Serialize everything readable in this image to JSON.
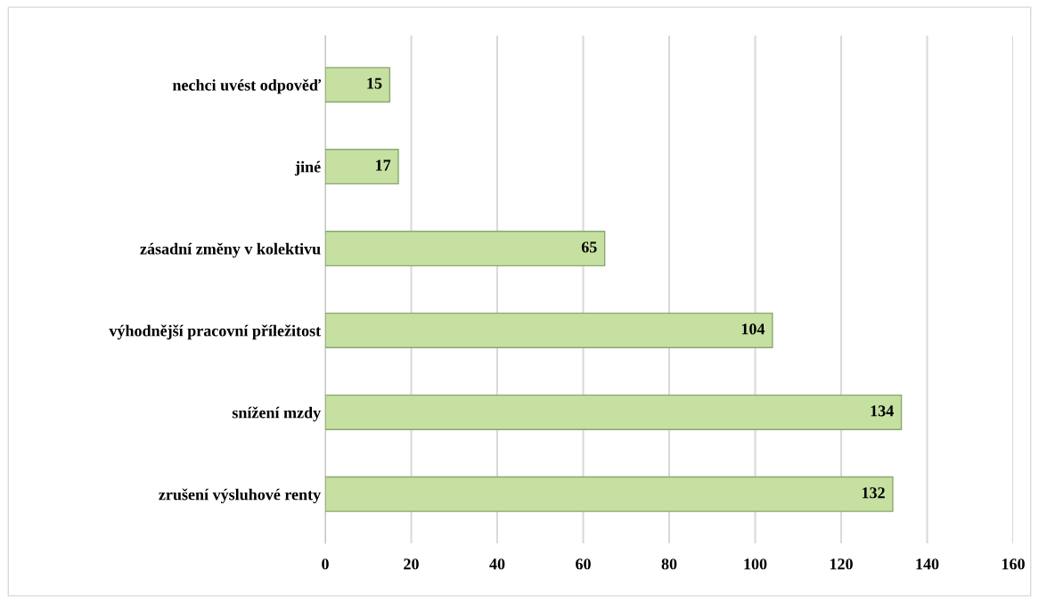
{
  "chart_data": {
    "type": "bar",
    "orientation": "horizontal",
    "categories": [
      "nechci uvést odpověď",
      "jiné",
      "zásadní změny v kolektivu",
      "výhodnější pracovní příležitost",
      "snížení mzdy",
      "zrušení výsluhové renty"
    ],
    "values": [
      15,
      17,
      65,
      104,
      134,
      132
    ],
    "color": "#c5e0a0",
    "xlim": [
      0,
      160
    ],
    "xticks": [
      0,
      20,
      40,
      60,
      80,
      100,
      120,
      140,
      160
    ],
    "grid": "x",
    "data_labels": true
  }
}
